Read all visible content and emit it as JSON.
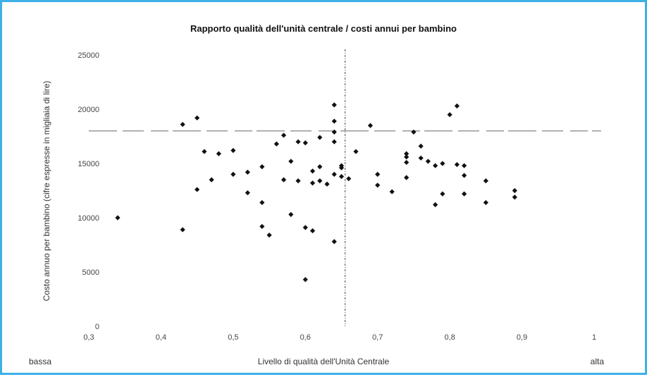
{
  "chart_data": {
    "type": "scatter",
    "title": "Rapporto qualità dell'unità centrale / costi annui per bambino",
    "xlabel": "Livello di qualità dell'Unità Centrale",
    "ylabel": "Costo annuo per bambino (cifre espresse in migliaia di lire)",
    "x_low_label": "bassa",
    "x_high_label": "alta",
    "xlim": [
      0.3,
      1.0
    ],
    "ylim": [
      0,
      25000
    ],
    "x_ticks": [
      "0,3",
      "0,4",
      "0,5",
      "0,6",
      "0,7",
      "0,8",
      "0,9",
      "1"
    ],
    "y_ticks": [
      "0",
      "5000",
      "10000",
      "15000",
      "20000",
      "25000"
    ],
    "reference_lines": {
      "x": 0.655,
      "y": 18000
    },
    "marker_color": "#111111",
    "points": [
      {
        "x": 0.34,
        "y": 10000
      },
      {
        "x": 0.43,
        "y": 18600
      },
      {
        "x": 0.43,
        "y": 8900
      },
      {
        "x": 0.45,
        "y": 19200
      },
      {
        "x": 0.45,
        "y": 12600
      },
      {
        "x": 0.46,
        "y": 16100
      },
      {
        "x": 0.47,
        "y": 13500
      },
      {
        "x": 0.48,
        "y": 15900
      },
      {
        "x": 0.5,
        "y": 16200
      },
      {
        "x": 0.5,
        "y": 14000
      },
      {
        "x": 0.52,
        "y": 14200
      },
      {
        "x": 0.52,
        "y": 12300
      },
      {
        "x": 0.54,
        "y": 14700
      },
      {
        "x": 0.54,
        "y": 11400
      },
      {
        "x": 0.54,
        "y": 9200
      },
      {
        "x": 0.55,
        "y": 8400
      },
      {
        "x": 0.56,
        "y": 16800
      },
      {
        "x": 0.57,
        "y": 17600
      },
      {
        "x": 0.57,
        "y": 13500
      },
      {
        "x": 0.58,
        "y": 15200
      },
      {
        "x": 0.58,
        "y": 10300
      },
      {
        "x": 0.59,
        "y": 17000
      },
      {
        "x": 0.59,
        "y": 13400
      },
      {
        "x": 0.6,
        "y": 16900
      },
      {
        "x": 0.6,
        "y": 9100
      },
      {
        "x": 0.6,
        "y": 4300
      },
      {
        "x": 0.61,
        "y": 14300
      },
      {
        "x": 0.61,
        "y": 13200
      },
      {
        "x": 0.61,
        "y": 8800
      },
      {
        "x": 0.62,
        "y": 17400
      },
      {
        "x": 0.62,
        "y": 14700
      },
      {
        "x": 0.62,
        "y": 13400
      },
      {
        "x": 0.63,
        "y": 13100
      },
      {
        "x": 0.64,
        "y": 20400
      },
      {
        "x": 0.64,
        "y": 18900
      },
      {
        "x": 0.64,
        "y": 17900
      },
      {
        "x": 0.64,
        "y": 17000
      },
      {
        "x": 0.64,
        "y": 14000
      },
      {
        "x": 0.64,
        "y": 7800
      },
      {
        "x": 0.65,
        "y": 14800
      },
      {
        "x": 0.65,
        "y": 14600
      },
      {
        "x": 0.65,
        "y": 13800
      },
      {
        "x": 0.66,
        "y": 13600
      },
      {
        "x": 0.67,
        "y": 16100
      },
      {
        "x": 0.69,
        "y": 18500
      },
      {
        "x": 0.7,
        "y": 14000
      },
      {
        "x": 0.7,
        "y": 13000
      },
      {
        "x": 0.72,
        "y": 12400
      },
      {
        "x": 0.74,
        "y": 15900
      },
      {
        "x": 0.74,
        "y": 15600
      },
      {
        "x": 0.74,
        "y": 15100
      },
      {
        "x": 0.74,
        "y": 13700
      },
      {
        "x": 0.75,
        "y": 17900
      },
      {
        "x": 0.76,
        "y": 16600
      },
      {
        "x": 0.76,
        "y": 15500
      },
      {
        "x": 0.77,
        "y": 15200
      },
      {
        "x": 0.78,
        "y": 14800
      },
      {
        "x": 0.78,
        "y": 11200
      },
      {
        "x": 0.79,
        "y": 15000
      },
      {
        "x": 0.79,
        "y": 12200
      },
      {
        "x": 0.8,
        "y": 19500
      },
      {
        "x": 0.81,
        "y": 20300
      },
      {
        "x": 0.81,
        "y": 14900
      },
      {
        "x": 0.82,
        "y": 14800
      },
      {
        "x": 0.82,
        "y": 13900
      },
      {
        "x": 0.82,
        "y": 12200
      },
      {
        "x": 0.85,
        "y": 13400
      },
      {
        "x": 0.85,
        "y": 11400
      },
      {
        "x": 0.89,
        "y": 12500
      },
      {
        "x": 0.89,
        "y": 11900
      }
    ]
  }
}
